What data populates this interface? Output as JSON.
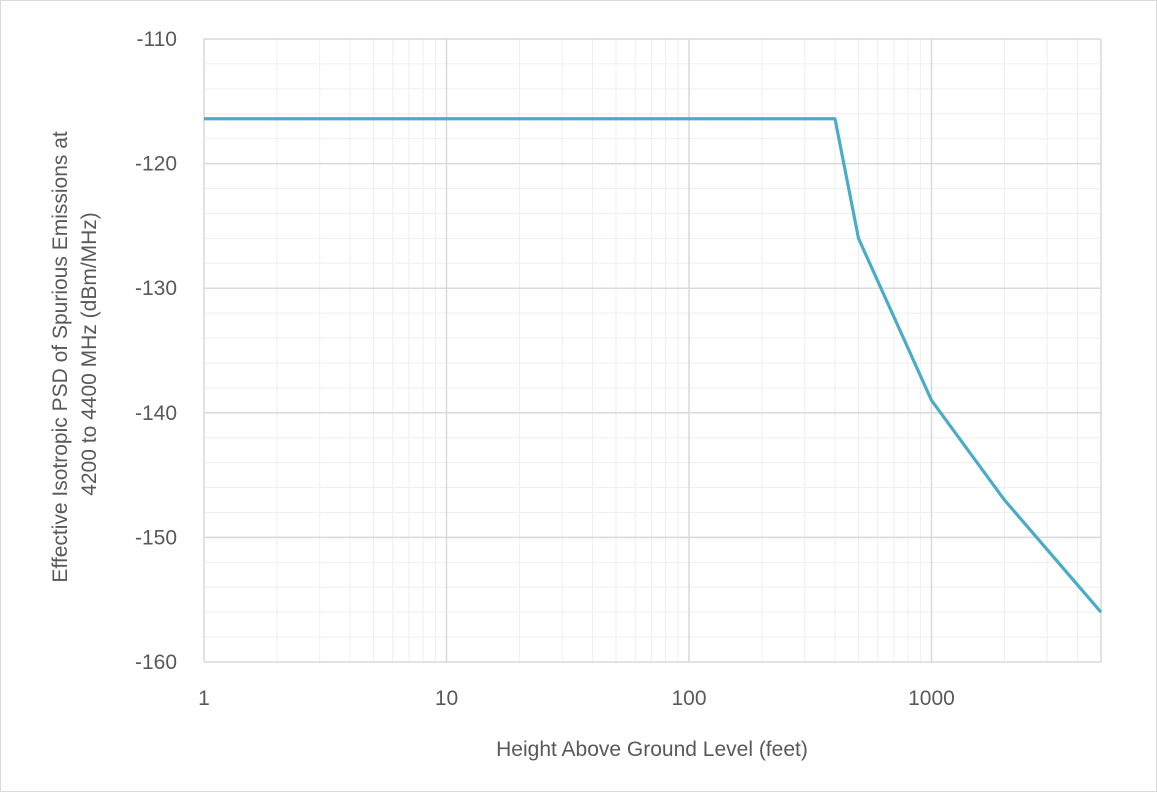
{
  "chart_data": {
    "type": "line",
    "title": "",
    "xlabel": "Height Above Ground Level (feet)",
    "ylabel_lines": [
      "Effective Isotropic PSD of Spurious Emissions at",
      "4200 to 4400 MHz (dBm/MHz)"
    ],
    "x_scale": "log",
    "xlim": [
      1,
      5000
    ],
    "ylim": [
      -160,
      -110
    ],
    "x_ticks": [
      1,
      10,
      100,
      1000
    ],
    "x_tick_labels": [
      "1",
      "10",
      "100",
      "1000"
    ],
    "y_ticks": [
      -160,
      -150,
      -140,
      -130,
      -120,
      -110
    ],
    "y_tick_labels": [
      "-160",
      "-150",
      "-140",
      "-130",
      "-120",
      "-110"
    ],
    "grid": true,
    "series": [
      {
        "color": "#4bacc6",
        "x": [
          1,
          400,
          500,
          1000,
          2000,
          5000
        ],
        "y": [
          -116.4,
          -116.4,
          -126,
          -139,
          -147,
          -156
        ]
      }
    ]
  }
}
